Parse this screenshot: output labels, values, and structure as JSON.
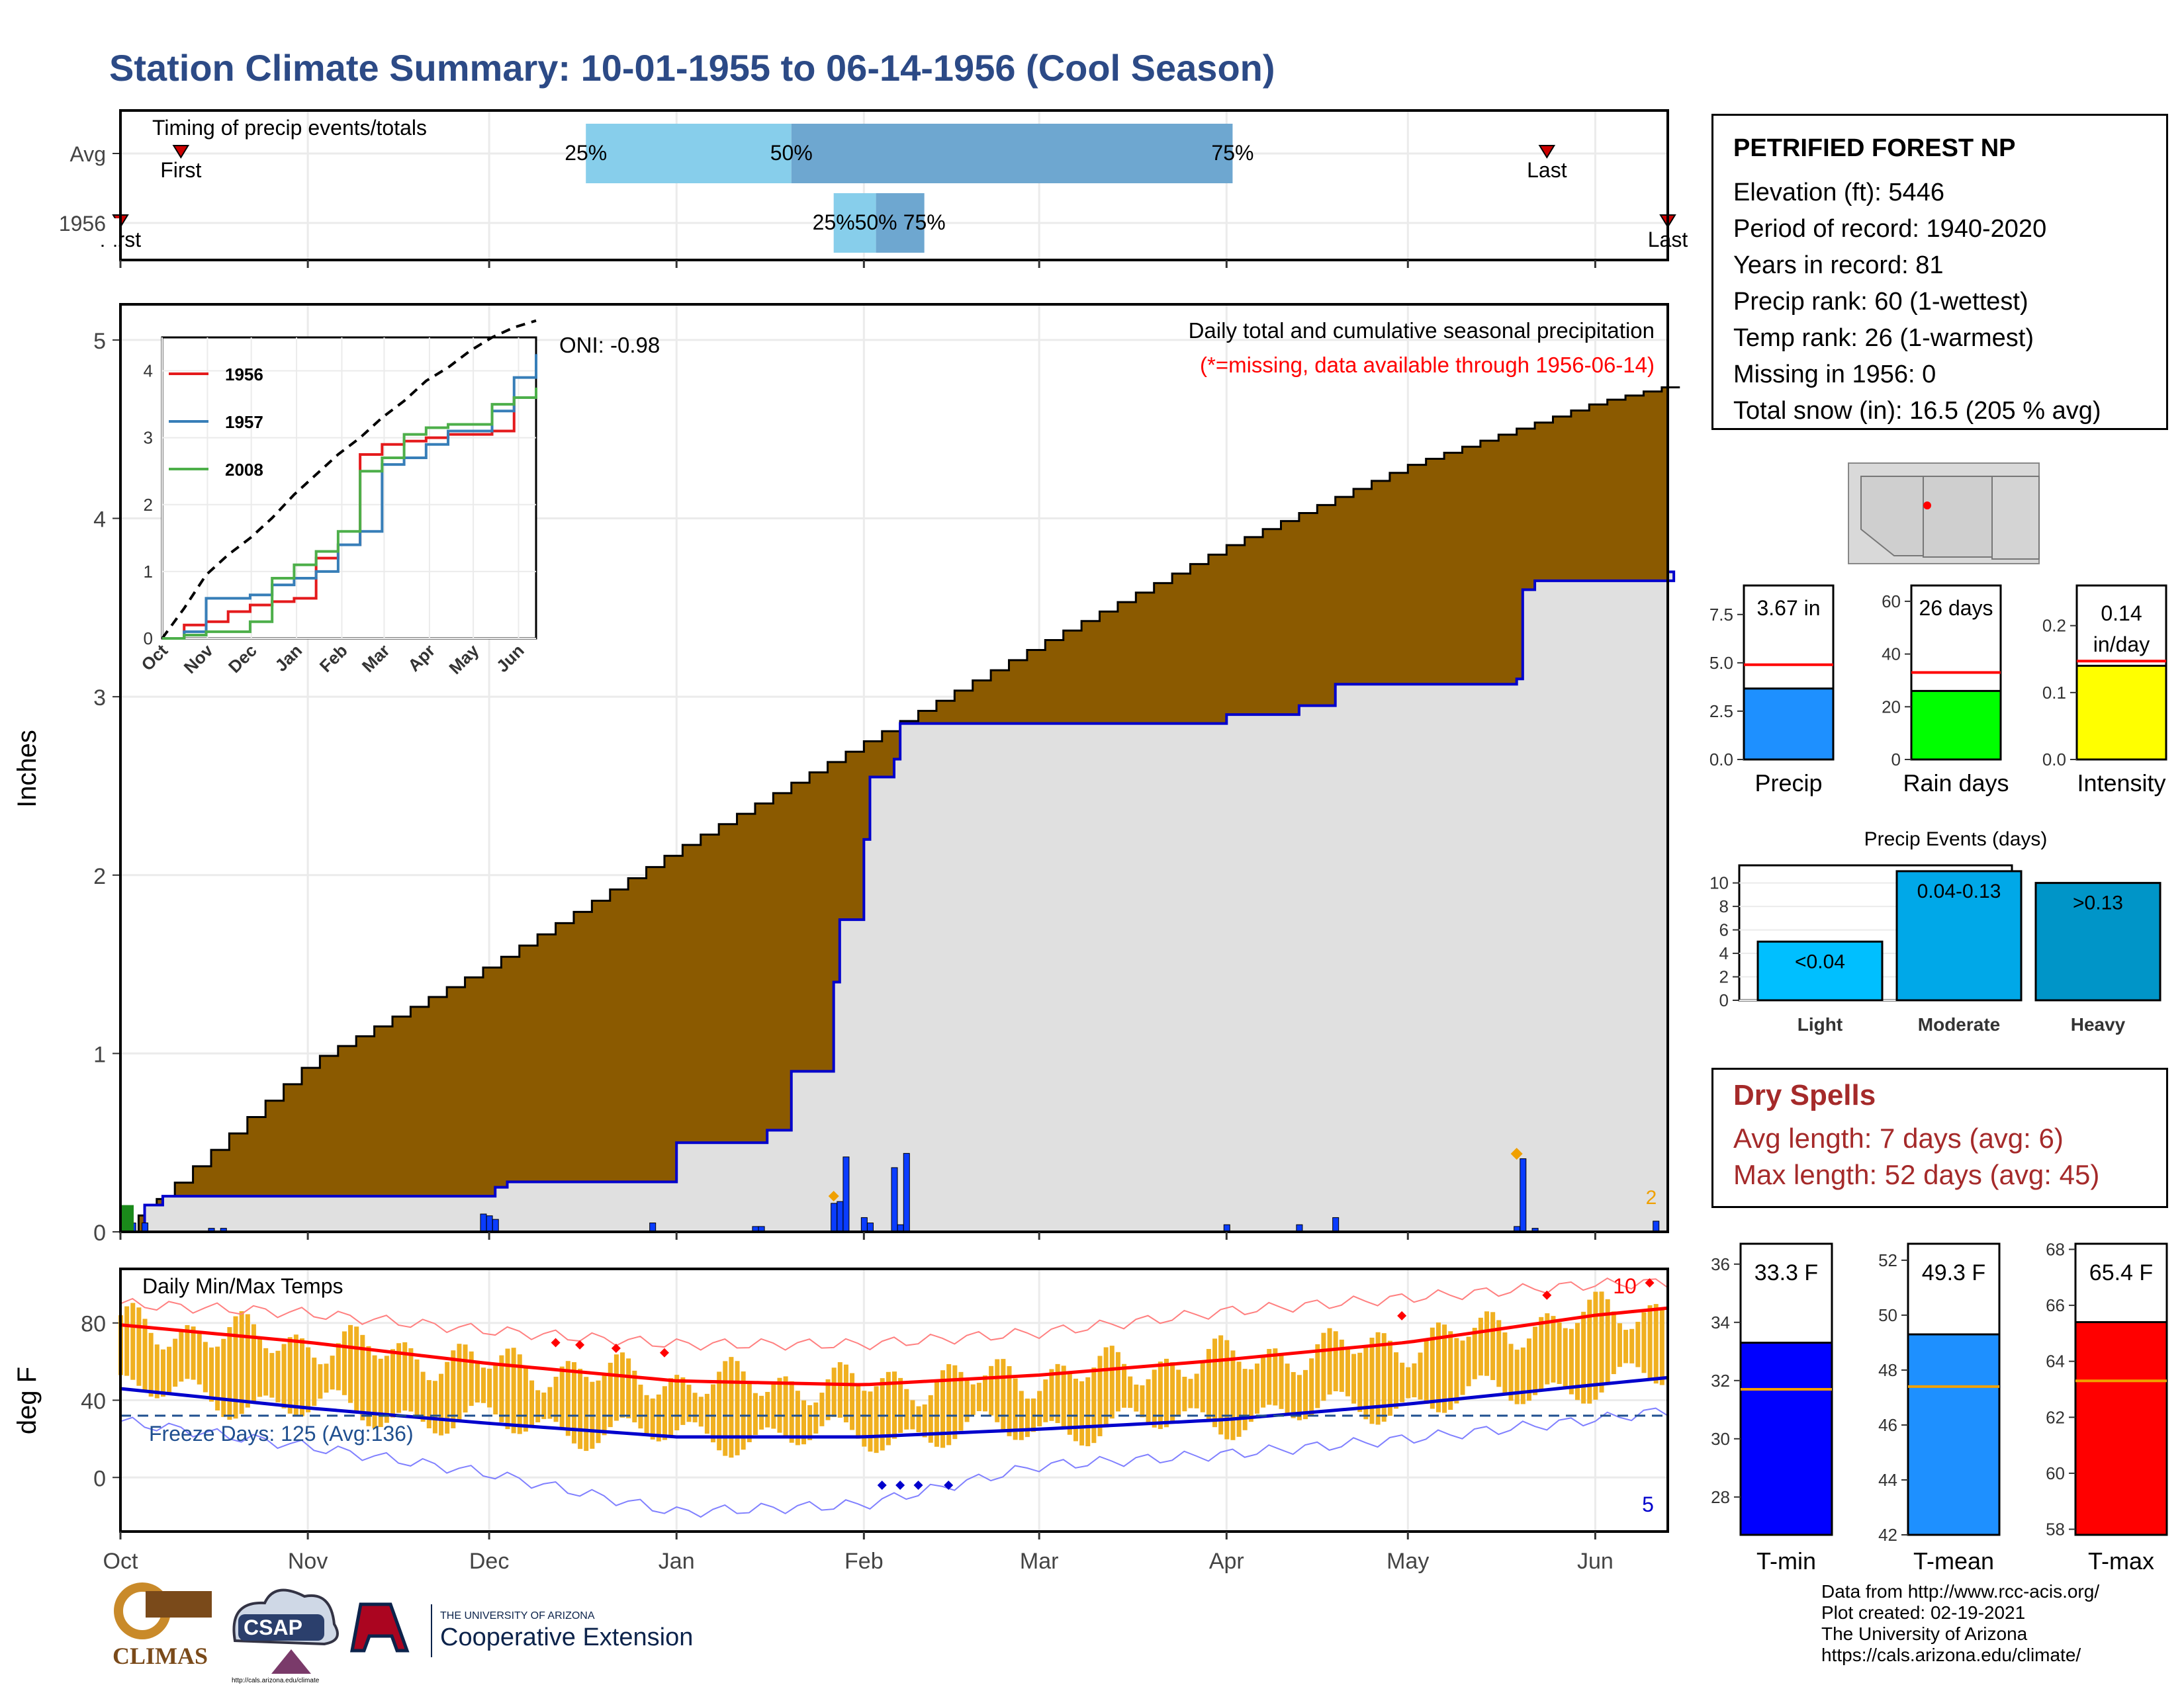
{
  "title": "Station Climate Summary: 10-01-1955 to 06-14-1956 (Cool Season)",
  "colors": {
    "title": "#2c4a86",
    "cumulative_current": "#8b5a00",
    "cumulative_avg": "#e0e0e0",
    "avg_line": "#0000cc",
    "daily_bar": "#0a3cff",
    "temp_bar": "#f0b020",
    "tmax_avg": "#ff0000",
    "tmin_avg": "#0000cc",
    "dry_spells": "#a52a2a",
    "q_light": "#87ceeb",
    "q_dark": "#6ea7d0"
  },
  "station": {
    "name": "PETRIFIED FOREST NP",
    "lines": [
      "Elevation (ft): 5446",
      "Period of record: 1940-2020",
      "Years in record: 81",
      "Precip rank: 60 (1-wettest)",
      "Temp rank: 26 (1-warmest)",
      "Missing in 1956: 0",
      "Total snow (in): 16.5 (205 % avg)"
    ]
  },
  "dry_spells": {
    "title": "Dry Spells",
    "avg": "Avg length: 7 days (avg: 6)",
    "max": "Max length: 52 days (avg: 45)"
  },
  "credits": [
    "Data from http://www.rcc-acis.org/",
    "Plot created: 02-19-2021",
    "The University of Arizona",
    "https://cals.arizona.edu/climate/"
  ],
  "logos": {
    "climas": "CLIMAS",
    "csap": "CSAP",
    "csap_url": "http://cals.arizona.edu/climate",
    "ua_small": "THE UNIVERSITY OF ARIZONA",
    "ua_large": "Cooperative Extension"
  },
  "chart_data": [
    {
      "id": "timing",
      "type": "bar",
      "title": "Timing of precip events/totals",
      "rows": [
        {
          "label": "Avg",
          "first": "Oct 11",
          "q25": "Dec 17",
          "q50": "Jan 20",
          "q75": "Apr 2",
          "last": "May 24",
          "first_label": "First",
          "last_label": "Last"
        },
        {
          "label": "1956",
          "first": "Oct 1",
          "q25": "Jan 27",
          "q50": "Feb 3",
          "q75": "Feb 11",
          "last": "Jun 13",
          "first_label": "First",
          "last_label": "Last"
        }
      ],
      "pct_labels": [
        "25%",
        "50%",
        "75%"
      ]
    },
    {
      "id": "precip",
      "type": "area",
      "ylabel": "Inches",
      "ylim": [
        0,
        5.2
      ],
      "yticks": [
        0,
        1,
        2,
        3,
        4,
        5
      ],
      "xticks": [
        "Oct",
        "Nov",
        "Dec",
        "Jan",
        "Feb",
        "Mar",
        "Apr",
        "May",
        "Jun"
      ],
      "subtitle": "Daily total and cumulative seasonal precipitation",
      "note": "(*=missing, data available through 1956-06-14)",
      "oni": "ONI: -0.98",
      "corner_label": "2",
      "avg_cumulative": {
        "dates": [
          "Oct 1",
          "Nov 1",
          "Dec 1",
          "Jan 1",
          "Feb 1",
          "Mar 1",
          "Apr 1",
          "May 1",
          "Jun 1",
          "Jun 14"
        ],
        "values": [
          0.0,
          0.95,
          1.5,
          2.15,
          2.75,
          3.3,
          3.85,
          4.3,
          4.65,
          4.75
        ]
      },
      "current_cumulative": {
        "dates": [
          "Oct 1",
          "Oct 5",
          "Oct 8",
          "Dec 1",
          "Dec 2",
          "Dec 4",
          "Jan 1",
          "Jan 15",
          "Jan 16",
          "Jan 20",
          "Jan 27",
          "Jan 28",
          "Feb 1",
          "Feb 2",
          "Feb 6",
          "Feb 7",
          "Feb 8",
          "Apr 1",
          "Apr 13",
          "Apr 19",
          "May 19",
          "May 20",
          "May 22",
          "Jun 11",
          "Jun 14"
        ],
        "values": [
          0.0,
          0.15,
          0.2,
          0.2,
          0.25,
          0.28,
          0.5,
          0.5,
          0.57,
          0.9,
          1.4,
          1.75,
          2.2,
          2.55,
          2.65,
          2.85,
          2.85,
          2.9,
          2.95,
          3.07,
          3.1,
          3.6,
          3.65,
          3.65,
          3.7
        ]
      },
      "daily": {
        "dates": [
          "Oct 3",
          "Oct 5",
          "Oct 16",
          "Oct 18",
          "Nov 30",
          "Dec 1",
          "Dec 2",
          "Dec 28",
          "Jan 14",
          "Jan 15",
          "Jan 27",
          "Jan 28",
          "Jan 29",
          "Feb 1",
          "Feb 2",
          "Feb 6",
          "Feb 7",
          "Feb 8",
          "Apr 1",
          "Apr 13",
          "Apr 19",
          "May 19",
          "May 20",
          "May 22",
          "Jun 11"
        ],
        "values": [
          0.05,
          0.05,
          0.02,
          0.02,
          0.1,
          0.09,
          0.07,
          0.05,
          0.03,
          0.03,
          0.16,
          0.17,
          0.42,
          0.08,
          0.05,
          0.36,
          0.04,
          0.44,
          0.04,
          0.04,
          0.08,
          0.03,
          0.41,
          0.02,
          0.06
        ]
      },
      "inset": {
        "type": "line",
        "ylim": [
          0,
          4.5
        ],
        "yticks": [
          0,
          1,
          2,
          3,
          4
        ],
        "xticks": [
          "Oct",
          "Nov",
          "Dec",
          "Jan",
          "Feb",
          "Mar",
          "Apr",
          "May",
          "Jun"
        ],
        "series": [
          {
            "name": "1956",
            "color": "#e41a1c",
            "values": [
              0.0,
              0.2,
              0.25,
              0.4,
              0.5,
              0.55,
              0.6,
              1.2,
              1.4,
              2.75,
              2.9,
              2.95,
              3.0,
              3.05,
              3.05,
              3.1,
              3.6,
              3.7
            ]
          },
          {
            "name": "1957",
            "color": "#377eb8",
            "values": [
              0.0,
              0.1,
              0.6,
              0.6,
              0.65,
              0.8,
              0.9,
              1.0,
              1.4,
              1.6,
              2.6,
              2.7,
              2.9,
              3.1,
              3.1,
              3.4,
              3.9,
              4.25
            ]
          },
          {
            "name": "2008",
            "color": "#4daf4a",
            "values": [
              0.0,
              0.05,
              0.1,
              0.1,
              0.25,
              0.9,
              1.1,
              1.3,
              1.6,
              2.5,
              2.7,
              3.05,
              3.15,
              3.2,
              3.2,
              3.5,
              3.6,
              3.75
            ]
          }
        ],
        "avg_cumulative": [
          0.0,
          0.45,
          0.95,
          1.25,
          1.5,
          1.8,
          2.15,
          2.45,
          2.75,
          3.0,
          3.3,
          3.55,
          3.85,
          4.05,
          4.3,
          4.5,
          4.65,
          4.75
        ]
      }
    },
    {
      "id": "temps",
      "type": "bar",
      "title": "Daily Min/Max Temps",
      "ylabel": "deg F",
      "ylim": [
        -28,
        108
      ],
      "yticks": [
        0,
        40,
        80
      ],
      "xticks": [
        "Oct",
        "Nov",
        "Dec",
        "Jan",
        "Feb",
        "Mar",
        "Apr",
        "May",
        "Jun"
      ],
      "freeze_days": "Freeze Days: 125 (Avg:136)",
      "freeze_line": 32,
      "count_hot": "10",
      "count_cold": "5",
      "tmax_avg": {
        "dates": [
          "Oct 1",
          "Nov 1",
          "Dec 1",
          "Jan 1",
          "Feb 1",
          "Mar 1",
          "Apr 1",
          "May 1",
          "Jun 1",
          "Jun 14"
        ],
        "values": [
          79,
          70,
          59,
          50,
          48,
          53,
          61,
          70,
          84,
          88
        ]
      },
      "tmin_avg": {
        "dates": [
          "Oct 1",
          "Nov 1",
          "Dec 1",
          "Jan 1",
          "Feb 1",
          "Mar 1",
          "Apr 1",
          "May 1",
          "Jun 1",
          "Jun 14"
        ],
        "values": [
          46,
          36,
          28,
          21,
          21,
          25,
          30,
          38,
          48,
          52
        ]
      },
      "tmax_record": {
        "dates": [
          "Oct 1",
          "Nov 1",
          "Dec 1",
          "Jan 1",
          "Feb 1",
          "Mar 1",
          "Apr 1",
          "May 1",
          "Jun 1",
          "Jun 14"
        ],
        "values": [
          90,
          85,
          76,
          69,
          69,
          75,
          86,
          93,
          100,
          101
        ]
      },
      "tmin_record": {
        "dates": [
          "Oct 1",
          "Nov 1",
          "Dec 1",
          "Jan 1",
          "Feb 1",
          "Mar 1",
          "Apr 1",
          "May 1",
          "Jun 1",
          "Jun 14"
        ],
        "values": [
          29,
          16,
          2,
          -18,
          -14,
          6,
          12,
          20,
          30,
          35
        ]
      }
    },
    {
      "id": "summary_precip",
      "type": "bar",
      "panels": [
        {
          "label": "Precip",
          "value_label": "3.67 in",
          "value": 3.67,
          "avg": 4.9,
          "ylim": [
            0,
            9
          ],
          "yticks": [
            0.0,
            2.5,
            5.0,
            7.5
          ],
          "tick_labels": [
            "0.0",
            "2.5",
            "5.0",
            "7.5"
          ],
          "color": "#1e90ff"
        },
        {
          "label": "Rain days",
          "value_label": "26 days",
          "value": 26,
          "avg": 33,
          "ylim": [
            0,
            66
          ],
          "yticks": [
            0,
            20,
            40,
            60
          ],
          "tick_labels": [
            "0",
            "20",
            "40",
            "60"
          ],
          "color": "#00ff00"
        },
        {
          "label": "Intensity",
          "value_label": "0.14 in/day",
          "value": 0.14,
          "avg": 0.147,
          "ylim": [
            0,
            0.26
          ],
          "yticks": [
            0.0,
            0.1,
            0.2
          ],
          "tick_labels": [
            "0.0",
            "0.1",
            "0.2"
          ],
          "color": "#ffff00"
        }
      ]
    },
    {
      "id": "precip_events",
      "type": "bar",
      "title": "Precip Events (days)",
      "categories": [
        "Light",
        "Moderate",
        "Heavy"
      ],
      "bar_labels": [
        "<0.04",
        "0.04-0.13",
        ">0.13"
      ],
      "values": [
        5,
        11,
        10
      ],
      "ylim": [
        0,
        11.5
      ],
      "yticks": [
        0,
        2,
        4,
        6,
        8,
        10
      ],
      "colors": [
        "#00bfff",
        "#00a8e8",
        "#0095c8"
      ]
    },
    {
      "id": "summary_temps",
      "type": "bar",
      "panels": [
        {
          "label": "T-min",
          "value_label": "33.3 F",
          "value": 33.3,
          "avg": 31.7,
          "ylim": [
            26.7,
            36.7
          ],
          "yticks": [
            28,
            30,
            32,
            34,
            36
          ],
          "color": "#0000ff"
        },
        {
          "label": "T-mean",
          "value_label": "49.3 F",
          "value": 49.3,
          "avg": 47.4,
          "ylim": [
            42,
            52.6
          ],
          "yticks": [
            42,
            44,
            46,
            48,
            50,
            52
          ],
          "color": "#1e90ff"
        },
        {
          "label": "T-max",
          "value_label": "65.4 F",
          "value": 65.4,
          "avg": 63.3,
          "ylim": [
            57.8,
            68.2
          ],
          "yticks": [
            58,
            60,
            62,
            64,
            66,
            68
          ],
          "color": "#ff0000"
        }
      ]
    }
  ]
}
